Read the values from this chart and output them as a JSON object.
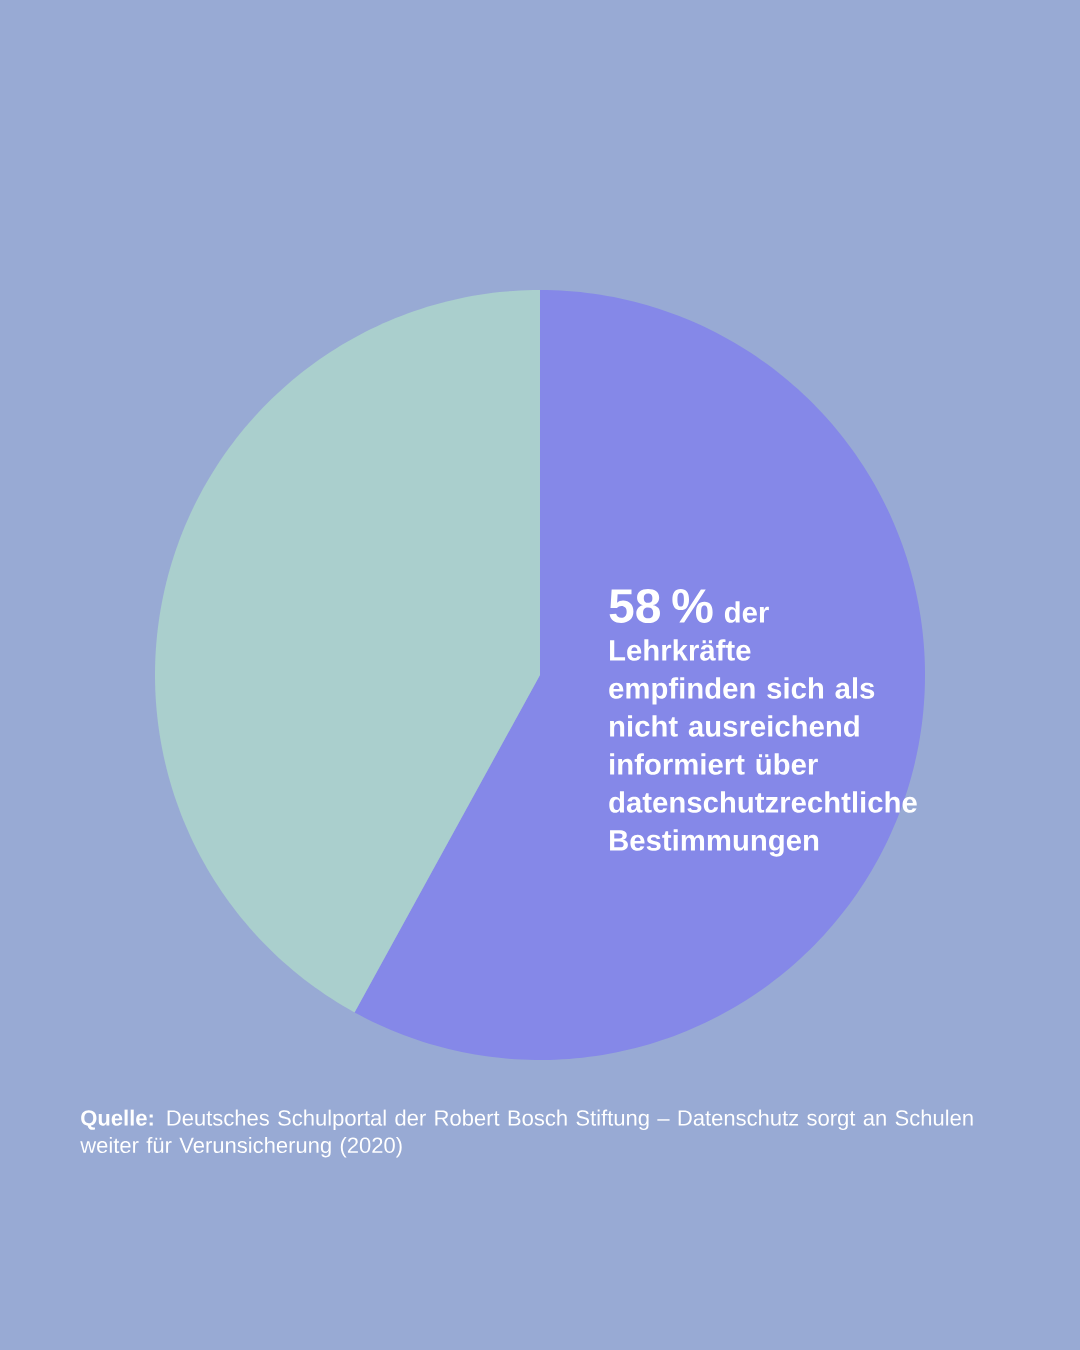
{
  "chart_data": {
    "type": "pie",
    "categories": [
      "der Lehrkräfte empfinden sich als nicht ausreichend informiert über datenschutzrechtliche Bestimmungen",
      null
    ],
    "values": [
      58,
      42
    ],
    "value_labels": [
      "58 %",
      null
    ],
    "colors": [
      "#8588e8",
      "#aacfcd"
    ],
    "annotations": [
      "**Quelle:** Deutsches Schulportal der Robert Bosch Stiftung – Datenschutz sorgt an Schulen weiter für Verunsicherung (2020)"
    ]
  }
}
